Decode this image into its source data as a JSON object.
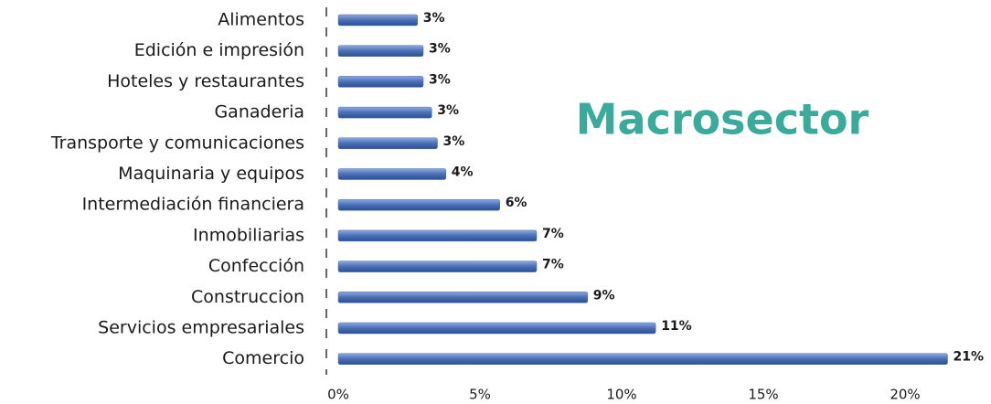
{
  "chart_data": {
    "type": "barh",
    "title": "Macrosector",
    "categories": [
      "Alimentos",
      "Edición e impresión",
      "Hoteles y restaurantes",
      "Ganaderia",
      "Transporte y comunicaciones",
      "Maquinaria y equipos",
      "Intermediación financiera",
      "Inmobiliarias",
      "Confección",
      "Construccion",
      "Servicios empresariales",
      "Comercio"
    ],
    "values": [
      2.8,
      3.0,
      3.0,
      3.3,
      3.5,
      3.8,
      5.7,
      7.0,
      7.0,
      8.8,
      11.2,
      21.5
    ],
    "value_labels": [
      "3%",
      "3%",
      "3%",
      "3%",
      "3%",
      "4%",
      "6%",
      "7%",
      "7%",
      "9%",
      "11%",
      "21%"
    ],
    "color": "#4a6fb5",
    "xlim": [
      0,
      22
    ],
    "xticks": [
      {
        "value": 0,
        "label": "0%"
      },
      {
        "value": 5,
        "label": "5%"
      },
      {
        "value": 10,
        "label": "10%"
      },
      {
        "value": 15,
        "label": "15%"
      },
      {
        "value": 20,
        "label": "20%"
      }
    ]
  }
}
